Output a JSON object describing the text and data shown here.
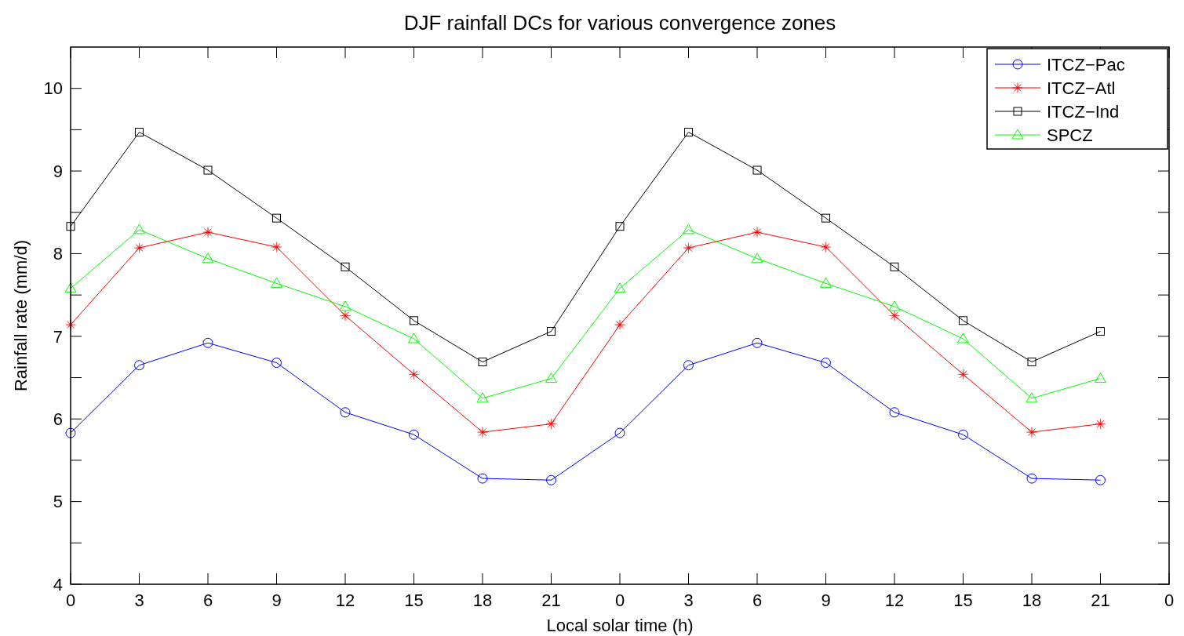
{
  "chart_data": {
    "type": "line",
    "title": "DJF rainfall DCs for various convergence zones",
    "xlabel": "Local solar time (h)",
    "ylabel": "Rainfall rate (mm/d)",
    "categories": [
      "0",
      "3",
      "6",
      "9",
      "12",
      "15",
      "18",
      "21",
      "0",
      "3",
      "6",
      "9",
      "12",
      "15",
      "18",
      "21",
      "0"
    ],
    "series": [
      {
        "name": "ITCZ−Pac",
        "color": "#0000ff",
        "marker": "circle",
        "values": [
          5.83,
          6.65,
          6.92,
          6.68,
          6.08,
          5.81,
          5.28,
          5.26,
          5.83,
          6.65,
          6.92,
          6.68,
          6.08,
          5.81,
          5.28,
          5.26,
          null
        ]
      },
      {
        "name": "ITCZ−Atl",
        "color": "#ff0000",
        "marker": "star",
        "values": [
          7.14,
          8.07,
          8.26,
          8.08,
          7.25,
          6.54,
          5.84,
          5.94,
          7.14,
          8.07,
          8.26,
          8.08,
          7.25,
          6.54,
          5.84,
          5.94,
          null
        ]
      },
      {
        "name": "ITCZ−Ind",
        "color": "#000000",
        "marker": "square",
        "values": [
          8.33,
          9.47,
          9.01,
          8.43,
          7.84,
          7.19,
          6.69,
          7.06,
          8.33,
          9.47,
          9.01,
          8.43,
          7.84,
          7.19,
          6.69,
          7.06,
          null
        ]
      },
      {
        "name": "SPCZ",
        "color": "#00ff00",
        "marker": "triangle",
        "values": [
          7.58,
          8.29,
          7.94,
          7.64,
          7.36,
          6.97,
          6.25,
          6.49,
          7.58,
          8.29,
          7.94,
          7.64,
          7.36,
          6.97,
          6.25,
          6.49,
          null
        ]
      }
    ],
    "ylim": [
      4,
      10.5
    ],
    "yticks": [
      4,
      {
        "value": 4.5,
        "label": null
      },
      5,
      {
        "value": 5.5,
        "label": null
      },
      6,
      {
        "value": 6.5,
        "label": null
      },
      7,
      {
        "value": 7.5,
        "label": null
      },
      8,
      {
        "value": 8.5,
        "label": null
      },
      9,
      {
        "value": 9.5,
        "label": null
      },
      10
    ],
    "grid": false,
    "legend": "top right",
    "line_style": "solid"
  }
}
